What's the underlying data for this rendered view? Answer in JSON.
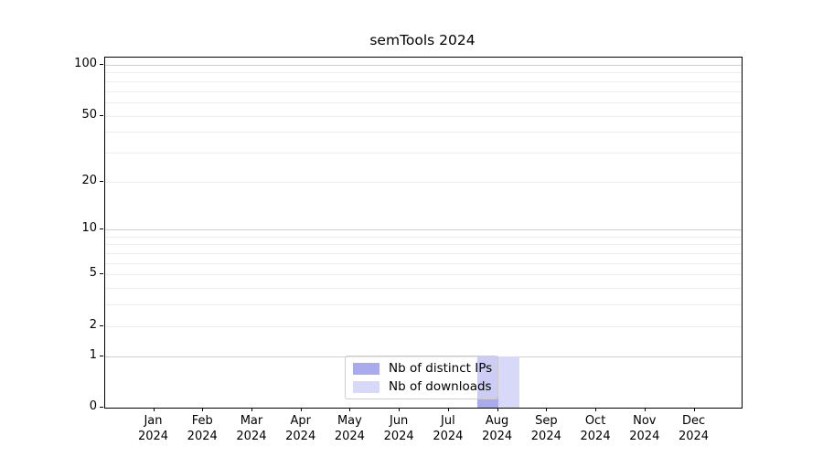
{
  "chart_data": {
    "type": "bar",
    "title": "semTools 2024",
    "categories": [
      "Jan",
      "Feb",
      "Mar",
      "Apr",
      "May",
      "Jun",
      "Jul",
      "Aug",
      "Sep",
      "Oct",
      "Nov",
      "Dec"
    ],
    "year_label": "2024",
    "series": [
      {
        "name": "Nb of distinct IPs",
        "color": "#aaaaee",
        "values": [
          0,
          0,
          0,
          0,
          0,
          0,
          0,
          1,
          0,
          0,
          0,
          0
        ]
      },
      {
        "name": "Nb of downloads",
        "color": "#d8d8f8",
        "values": [
          0,
          0,
          0,
          0,
          0,
          0,
          0,
          1,
          0,
          0,
          0,
          0
        ]
      }
    ],
    "xlabel": "",
    "ylabel": "",
    "y_scale": "log1p",
    "ylim": [
      0,
      110
    ],
    "y_ticks": [
      0,
      1,
      2,
      5,
      10,
      20,
      50,
      100
    ],
    "gridlines_major": [
      1,
      10,
      100
    ],
    "gridlines_minor": [
      2,
      3,
      4,
      5,
      6,
      7,
      8,
      9,
      20,
      30,
      40,
      50,
      60,
      70,
      80,
      90
    ],
    "grid": true,
    "legend_position": "lower center"
  },
  "colors": {
    "axis": "#000000",
    "grid_major": "#d0d0d0",
    "grid_minor": "#ededed",
    "legend_border": "#cccccc"
  }
}
